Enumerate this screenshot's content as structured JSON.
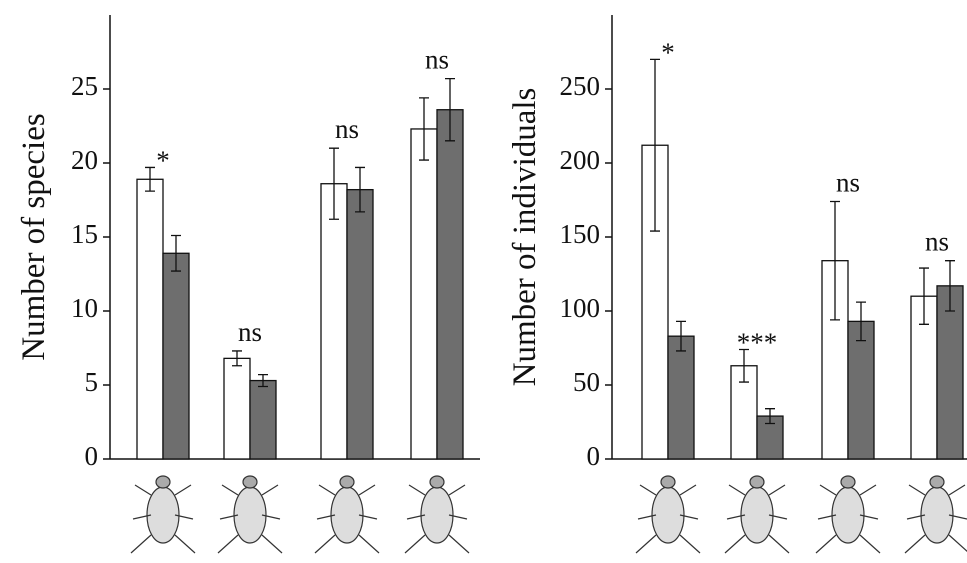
{
  "chart_data": [
    {
      "type": "bar",
      "ylabel": "Number of species",
      "categories": [
        null,
        null,
        null,
        null
      ],
      "series": [
        {
          "color": "#ffffff",
          "values": [
            18.9,
            6.8,
            18.6,
            22.3
          ],
          "errors": [
            0.8,
            0.5,
            2.4,
            2.1
          ]
        },
        {
          "color": "#6e6e6e",
          "values": [
            13.9,
            5.3,
            18.2,
            23.6
          ],
          "errors": [
            1.2,
            0.4,
            1.5,
            2.1
          ]
        }
      ],
      "annotations": [
        "*",
        "ns",
        "ns",
        "ns"
      ],
      "ylim": [
        0,
        30
      ],
      "yticks": [
        0,
        5,
        10,
        15,
        20,
        25
      ]
    },
    {
      "type": "bar",
      "ylabel": "Number of individuals",
      "categories": [
        null,
        null,
        null,
        null
      ],
      "series": [
        {
          "color": "#ffffff",
          "values": [
            212,
            63,
            134,
            110
          ],
          "errors": [
            58,
            11,
            40,
            19
          ]
        },
        {
          "color": "#6e6e6e",
          "values": [
            83,
            29,
            93,
            117
          ],
          "errors": [
            10,
            5,
            13,
            17
          ]
        }
      ],
      "annotations": [
        "*",
        "***",
        "ns",
        "ns"
      ],
      "ylim": [
        0,
        300
      ],
      "yticks": [
        0,
        50,
        100,
        150,
        200,
        250
      ]
    }
  ]
}
